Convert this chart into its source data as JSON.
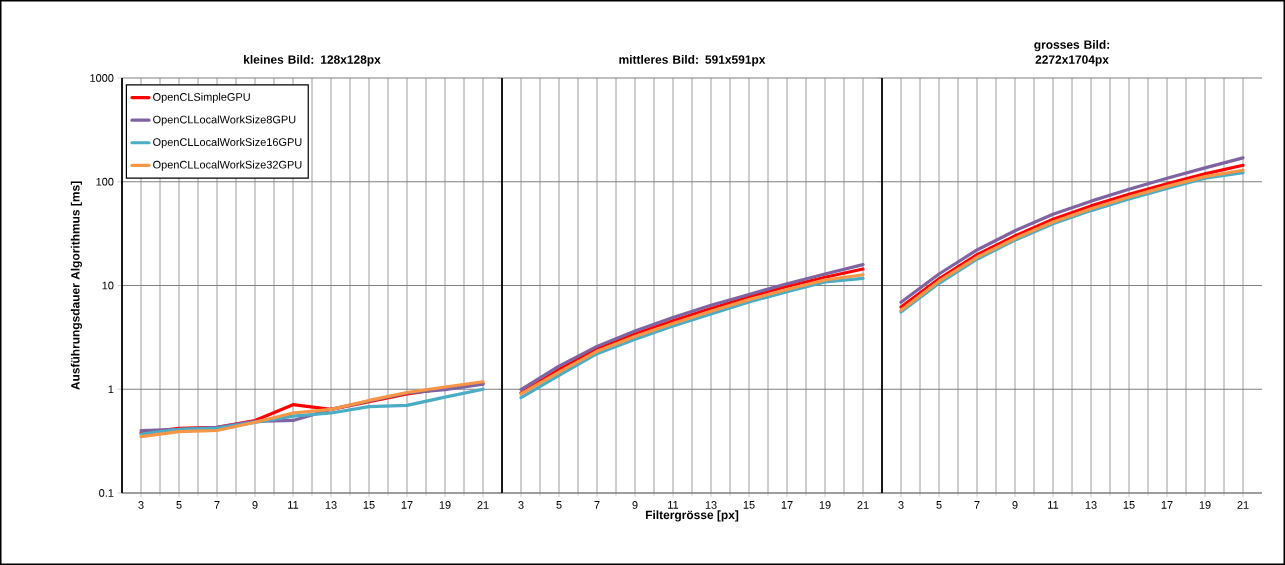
{
  "chart_data": [
    {
      "type": "line",
      "title": "kleines Bild: 128x128px",
      "ylabel": "Ausführungsdauer Algorithmus [ms]",
      "x": [
        3,
        5,
        7,
        9,
        11,
        13,
        15,
        17,
        19,
        21
      ],
      "xlim": [
        2,
        22
      ],
      "xticks": [
        3,
        5,
        7,
        9,
        11,
        13,
        15,
        17,
        19,
        21
      ],
      "ylim": [
        0.1,
        1000
      ],
      "yticks": [
        0.1,
        1,
        10,
        100,
        1000
      ],
      "log": true,
      "grid": true,
      "legend": "top left",
      "series": [
        {
          "name": "OpenCLSimpleGPU",
          "color": "#ff0000",
          "values": [
            0.38,
            0.42,
            0.43,
            0.5,
            0.71,
            0.64,
            0.76,
            0.9,
            1.02,
            1.13
          ]
        },
        {
          "name": "OpenCLLocalWorkSize8GPU",
          "color": "#8064a2",
          "values": [
            0.4,
            0.41,
            0.43,
            0.49,
            0.5,
            0.64,
            0.77,
            0.92,
            0.99,
            1.12
          ]
        },
        {
          "name": "OpenCLLocalWorkSize16GPU",
          "color": "#4bacc6",
          "values": [
            0.37,
            0.41,
            0.42,
            0.48,
            0.55,
            0.59,
            0.68,
            0.7,
            0.84,
            1.0
          ]
        },
        {
          "name": "OpenCLLocalWorkSize32GPU",
          "color": "#f79646",
          "values": [
            0.35,
            0.39,
            0.4,
            0.48,
            0.59,
            0.64,
            0.78,
            0.93,
            1.05,
            1.18
          ]
        }
      ]
    },
    {
      "type": "line",
      "title": "mittleres Bild: 591x591px",
      "xlabel": "Filtergrösse [px]",
      "x": [
        3,
        5,
        7,
        9,
        11,
        13,
        15,
        17,
        19,
        21
      ],
      "xlim": [
        2,
        22
      ],
      "xticks": [
        3,
        5,
        7,
        9,
        11,
        13,
        15,
        17,
        19,
        21
      ],
      "ylim": [
        0.1,
        1000
      ],
      "yticks": [
        0.1,
        1,
        10,
        100,
        1000
      ],
      "log": true,
      "grid": true,
      "tick_labels": "x",
      "series": [
        {
          "color": "#ff0000",
          "values": [
            0.92,
            1.55,
            2.44,
            3.41,
            4.57,
            6.0,
            7.74,
            9.78,
            12.0,
            14.4
          ]
        },
        {
          "color": "#8064a2",
          "values": [
            0.99,
            1.67,
            2.59,
            3.65,
            4.92,
            6.45,
            8.2,
            10.4,
            12.9,
            15.9
          ]
        },
        {
          "color": "#4bacc6",
          "values": [
            0.83,
            1.36,
            2.2,
            3.04,
            4.07,
            5.3,
            6.94,
            8.7,
            10.8,
            11.7
          ]
        },
        {
          "color": "#f79646",
          "values": [
            0.9,
            1.46,
            2.32,
            3.22,
            4.31,
            5.65,
            7.31,
            9.16,
            11.3,
            12.7
          ]
        }
      ]
    },
    {
      "type": "line",
      "title": "grosses Bild: 2272x1704px",
      "x": [
        3,
        5,
        7,
        9,
        11,
        13,
        15,
        17,
        19,
        21
      ],
      "xlim": [
        2,
        22
      ],
      "xticks": [
        3,
        5,
        7,
        9,
        11,
        13,
        15,
        17,
        19,
        21
      ],
      "ylim": [
        0.1,
        1000
      ],
      "yticks": [
        0.1,
        1,
        10,
        100,
        1000
      ],
      "log": true,
      "grid": true,
      "tick_labels": "x",
      "series": [
        {
          "color": "#ff0000",
          "values": [
            6.2,
            11.6,
            19.8,
            30.1,
            43.5,
            58.5,
            75.7,
            95.7,
            119,
            144
          ]
        },
        {
          "color": "#8064a2",
          "values": [
            6.9,
            12.9,
            22.0,
            33.7,
            48.6,
            65,
            84.5,
            108,
            136,
            170
          ]
        },
        {
          "color": "#4bacc6",
          "values": [
            5.56,
            10.5,
            17.9,
            27.4,
            39.3,
            52.7,
            68.2,
            86.3,
            108,
            122
          ]
        },
        {
          "color": "#f79646",
          "values": [
            5.76,
            11.0,
            18.7,
            28.4,
            41.0,
            55,
            71.3,
            90.2,
            112,
            129
          ]
        }
      ]
    }
  ]
}
